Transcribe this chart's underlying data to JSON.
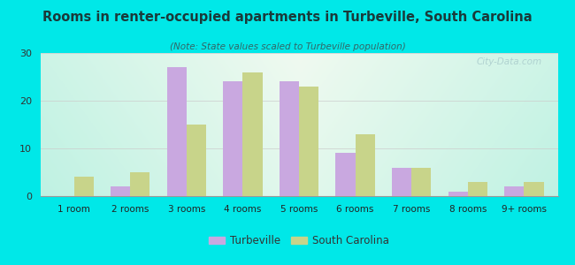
{
  "title": "Rooms in renter-occupied apartments in Turbeville, South Carolina",
  "subtitle": "(Note: State values scaled to Turbeville population)",
  "categories": [
    "1 room",
    "2 rooms",
    "3 rooms",
    "4 rooms",
    "5 rooms",
    "6 rooms",
    "7 rooms",
    "8 rooms",
    "9+ rooms"
  ],
  "turbeville": [
    0,
    2,
    27,
    24,
    24,
    9,
    6,
    1,
    2
  ],
  "south_carolina": [
    4,
    5,
    15,
    26,
    23,
    13,
    6,
    3,
    3
  ],
  "turbeville_color": "#c9a8e0",
  "sc_color": "#c8d48a",
  "background_outer": "#00e8e8",
  "bg_center": "#f0faf0",
  "bg_edge": "#aaeedd",
  "title_color": "#1a3a3a",
  "subtitle_color": "#336666",
  "ylim": [
    0,
    30
  ],
  "yticks": [
    0,
    10,
    20,
    30
  ],
  "bar_width": 0.35,
  "legend_turbeville": "Turbeville",
  "legend_sc": "South Carolina"
}
